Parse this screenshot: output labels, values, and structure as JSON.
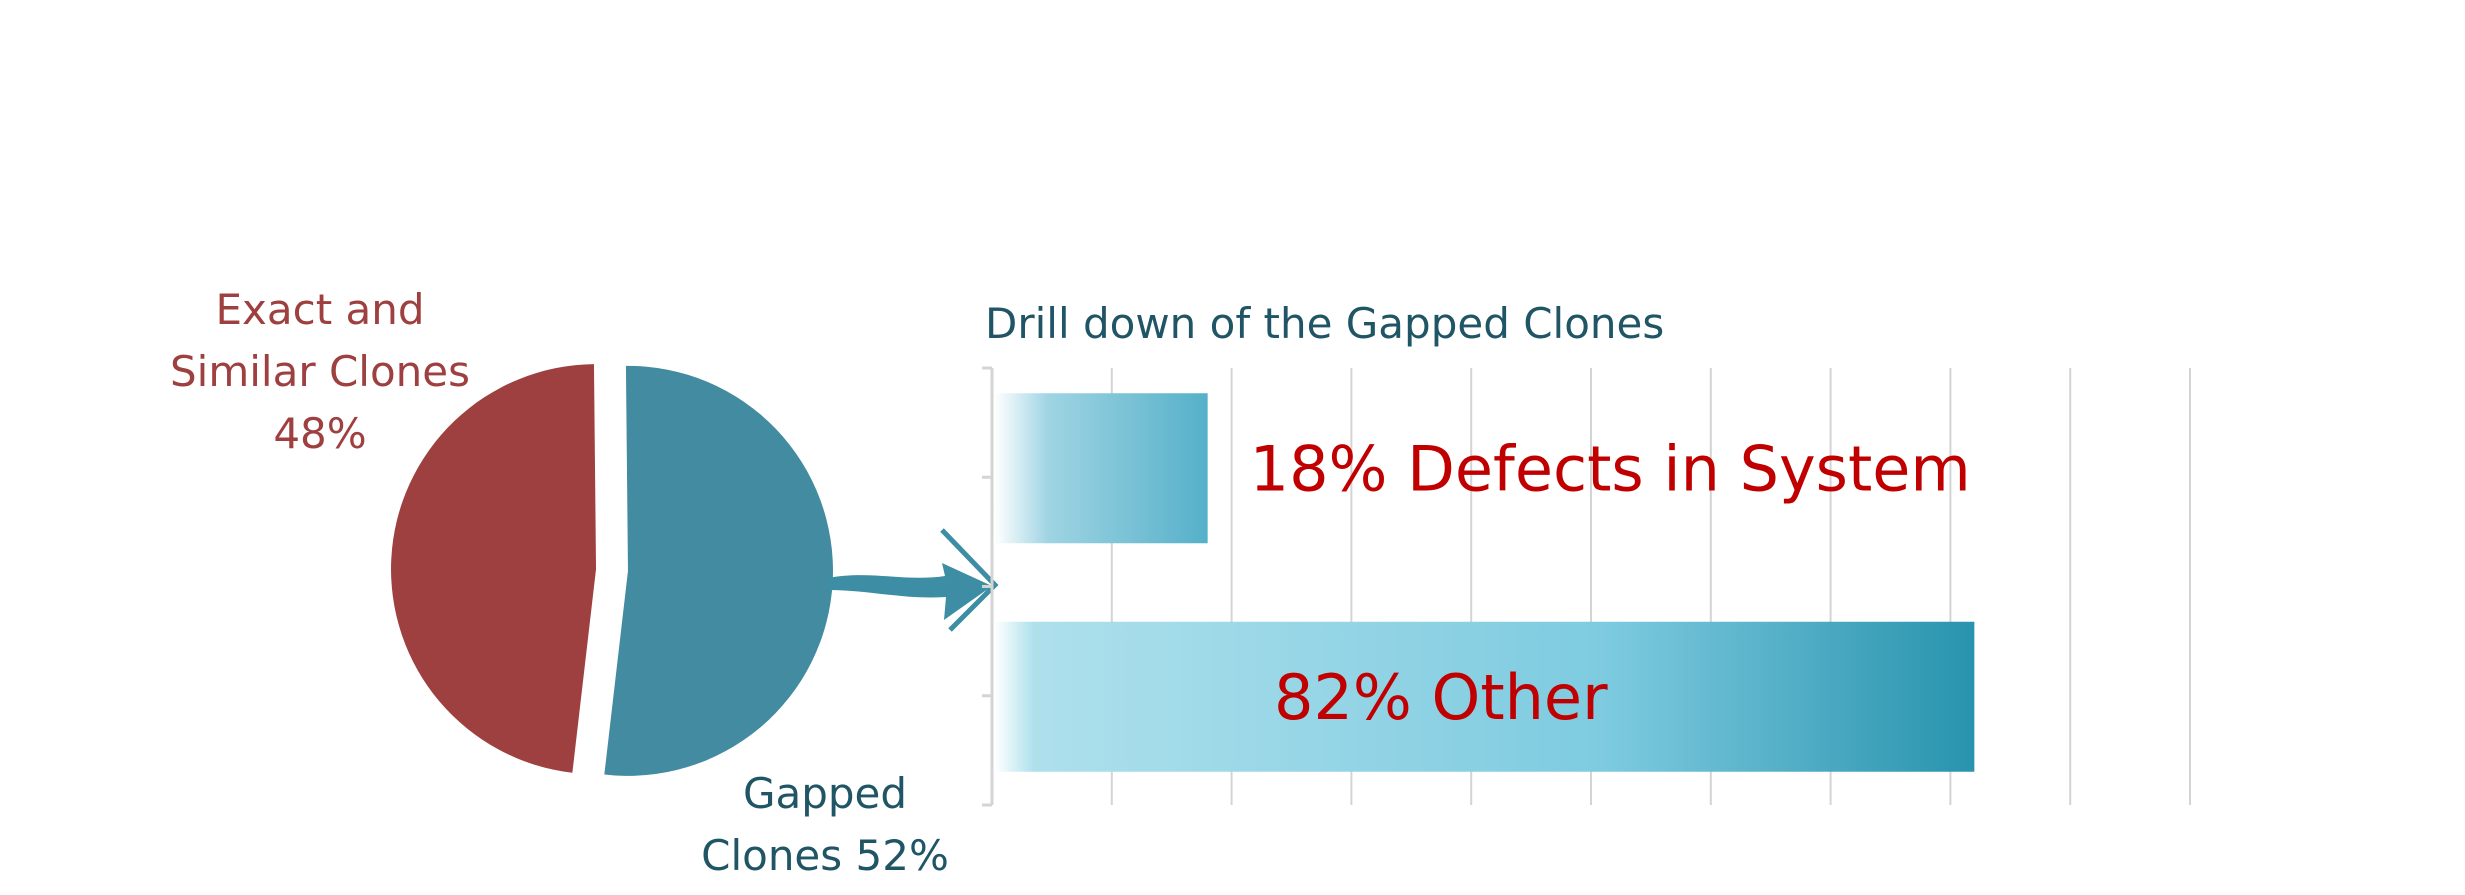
{
  "chart_data": [
    {
      "type": "pie",
      "title": "",
      "slices": [
        {
          "label_lines": [
            "Exact and",
            "Similar Clones",
            "48%"
          ],
          "value": 48,
          "color": "#9e4040"
        },
        {
          "label_lines": [
            "Gapped",
            "Clones 52%"
          ],
          "value": 52,
          "color": "#428ba0"
        }
      ]
    },
    {
      "type": "bar",
      "orientation": "horizontal",
      "title": "Drill down of the Gapped Clones",
      "xlim": [
        0,
        100
      ],
      "grid": true,
      "bars": [
        {
          "label": "18% Defects in System",
          "value": 18
        },
        {
          "label": "82% Other",
          "value": 82
        }
      ],
      "label_color": "#c00000",
      "bar_color": "#2893ad",
      "bar_color_light": "#aee0ec"
    }
  ],
  "colors": {
    "title": "#1f5565",
    "arrow": "#3d8ea4",
    "grid": "#d4d4d4"
  }
}
